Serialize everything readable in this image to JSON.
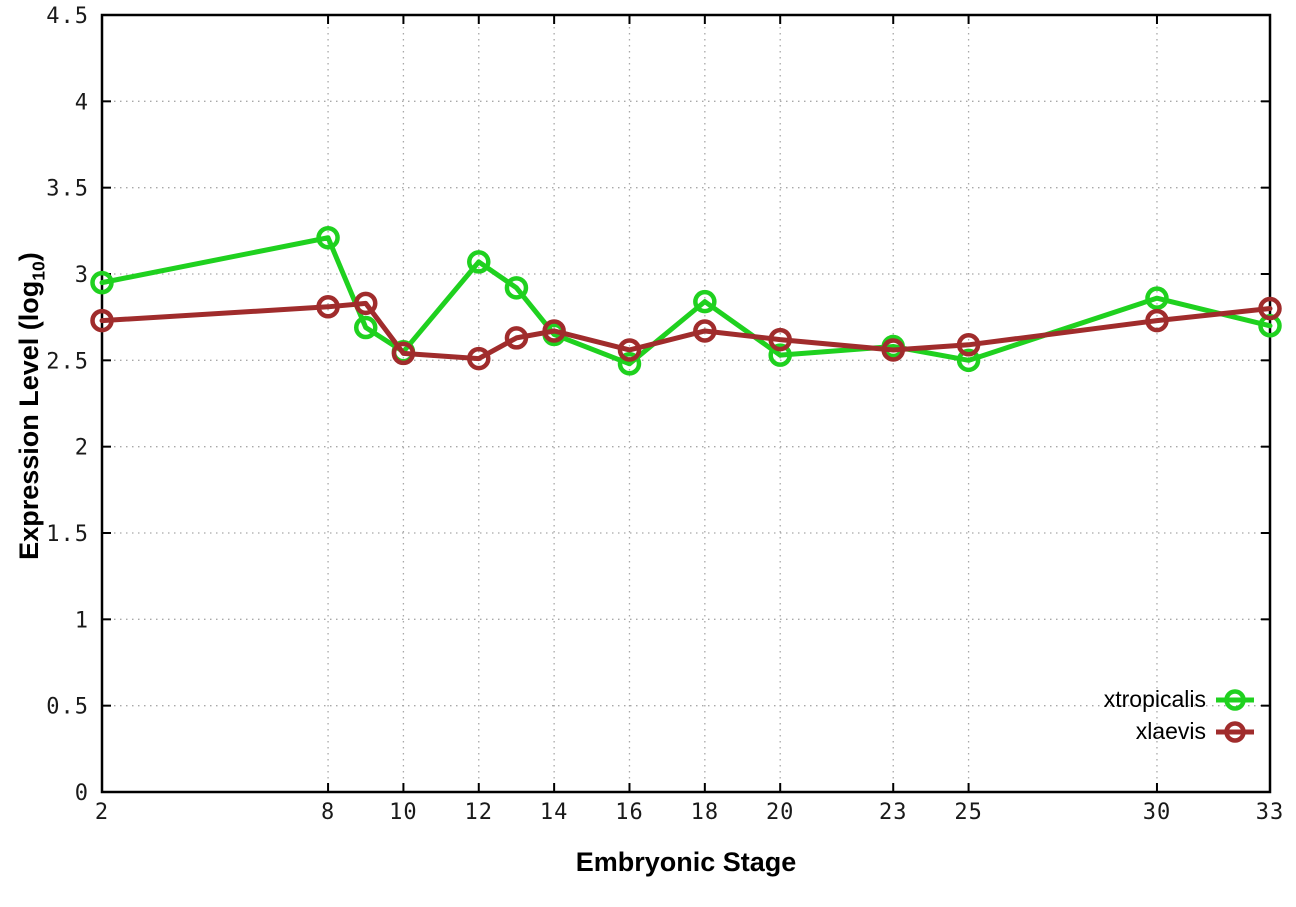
{
  "chart_data": {
    "type": "line",
    "title": "",
    "xlabel": "Embryonic Stage",
    "ylabel": {
      "prefix": "Expression Level (log",
      "sub": "10",
      "suffix": ")"
    },
    "x": [
      2,
      8,
      9,
      10,
      12,
      13,
      14,
      16,
      18,
      20,
      23,
      25,
      30,
      33
    ],
    "series": [
      {
        "name": "xtropicalis",
        "color": "#1fd11f",
        "values": [
          2.95,
          3.21,
          2.69,
          2.55,
          3.07,
          2.92,
          2.65,
          2.48,
          2.84,
          2.53,
          2.58,
          2.5,
          2.86,
          2.7
        ]
      },
      {
        "name": "xlaevis",
        "color": "#a02c2c",
        "values": [
          2.73,
          2.81,
          2.83,
          2.54,
          2.51,
          2.63,
          2.67,
          2.56,
          2.67,
          2.62,
          2.56,
          2.59,
          2.73,
          2.8
        ]
      }
    ],
    "xticks": [
      2,
      8,
      10,
      12,
      14,
      16,
      18,
      20,
      23,
      25,
      30,
      33
    ],
    "yticks": [
      0,
      0.5,
      1,
      1.5,
      2,
      2.5,
      3,
      3.5,
      4,
      4.5
    ],
    "ytick_labels": [
      "0",
      "0.5",
      "1",
      "1.5",
      "2",
      "2.5",
      "3",
      "3.5",
      "4",
      "4.5"
    ],
    "xlim": [
      2,
      33
    ],
    "ylim": [
      0,
      4.5
    ],
    "grid": true,
    "grid_color": "#a8a8a8",
    "border_color": "#000000",
    "legend_position": "bottom-right",
    "marker": "open-circle"
  }
}
